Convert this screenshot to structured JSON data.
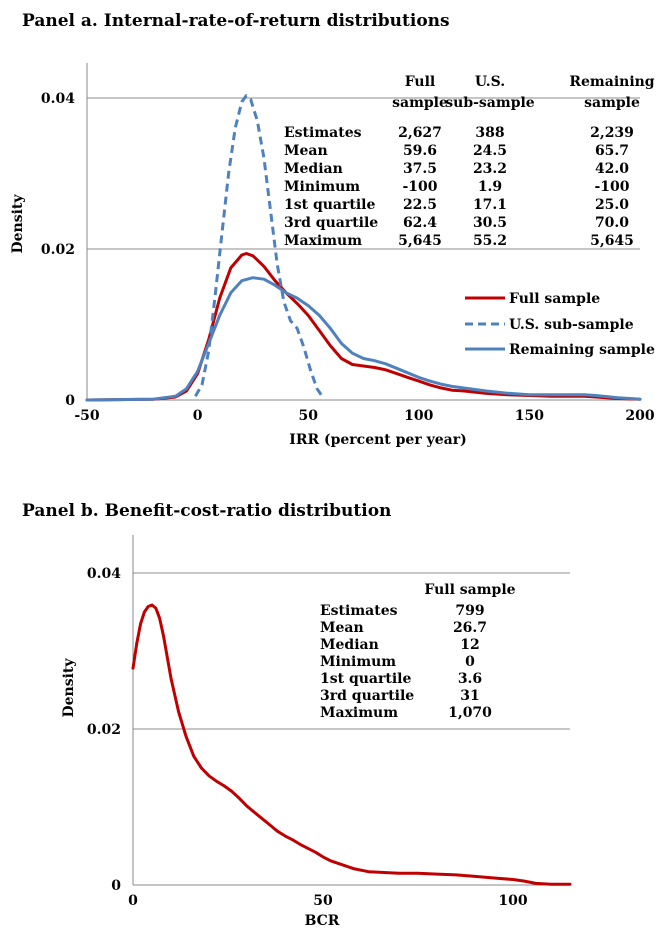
{
  "chart_data": [
    {
      "type": "line",
      "title": "Panel a. Internal-rate-of-return distributions",
      "xlabel": "IRR (percent per year)",
      "ylabel": "Density",
      "xlim": [
        -50,
        200
      ],
      "ylim": [
        0,
        0.04
      ],
      "x_ticks": [
        "-50",
        "0",
        "50",
        "100",
        "150",
        "200"
      ],
      "y_ticks": [
        "0",
        "0.02",
        "0.04"
      ],
      "grid": "horizontal",
      "legend_position": "right",
      "series": [
        {
          "name": "Full sample",
          "color": "#c00000",
          "style": "solid",
          "points": [
            [
              -50,
              0
            ],
            [
              -20,
              0.0001
            ],
            [
              -10,
              0.0004
            ],
            [
              -5,
              0.0012
            ],
            [
              0,
              0.0035
            ],
            [
              5,
              0.008
            ],
            [
              10,
              0.0135
            ],
            [
              15,
              0.0175
            ],
            [
              20,
              0.0192
            ],
            [
              22,
              0.0194
            ],
            [
              25,
              0.0191
            ],
            [
              30,
              0.0177
            ],
            [
              35,
              0.0158
            ],
            [
              40,
              0.0142
            ],
            [
              45,
              0.0128
            ],
            [
              50,
              0.0112
            ],
            [
              55,
              0.0092
            ],
            [
              60,
              0.0072
            ],
            [
              65,
              0.0055
            ],
            [
              70,
              0.0047
            ],
            [
              75,
              0.0045
            ],
            [
              80,
              0.0043
            ],
            [
              85,
              0.004
            ],
            [
              90,
              0.0035
            ],
            [
              95,
              0.003
            ],
            [
              100,
              0.0025
            ],
            [
              105,
              0.002
            ],
            [
              110,
              0.0016
            ],
            [
              115,
              0.0013
            ],
            [
              120,
              0.0012
            ],
            [
              130,
              0.0009
            ],
            [
              140,
              0.0007
            ],
            [
              150,
              0.0006
            ],
            [
              160,
              0.0005
            ],
            [
              170,
              0.0005
            ],
            [
              175,
              0.0005
            ],
            [
              180,
              0.0004
            ],
            [
              190,
              0.0002
            ],
            [
              200,
              0.0001
            ]
          ]
        },
        {
          "name": "U.S. sub-sample",
          "color": "#4f81bd",
          "style": "dashed",
          "points": [
            [
              -1,
              0.0005
            ],
            [
              2,
              0.002
            ],
            [
              5,
              0.0065
            ],
            [
              8,
              0.014
            ],
            [
              11,
              0.022
            ],
            [
              14,
              0.03
            ],
            [
              17,
              0.036
            ],
            [
              20,
              0.0395
            ],
            [
              22,
              0.0403
            ],
            [
              24,
              0.0398
            ],
            [
              27,
              0.037
            ],
            [
              30,
              0.032
            ],
            [
              33,
              0.025
            ],
            [
              36,
              0.018
            ],
            [
              39,
              0.013
            ],
            [
              42,
              0.0105
            ],
            [
              45,
              0.0095
            ],
            [
              48,
              0.007
            ],
            [
              51,
              0.004
            ],
            [
              54,
              0.0015
            ],
            [
              57,
              0.0002
            ]
          ]
        },
        {
          "name": "Remaining sample",
          "color": "#4f81bd",
          "style": "solid",
          "points": [
            [
              -50,
              0
            ],
            [
              -20,
              0.0001
            ],
            [
              -10,
              0.0005
            ],
            [
              -5,
              0.0015
            ],
            [
              0,
              0.0038
            ],
            [
              5,
              0.0075
            ],
            [
              10,
              0.0112
            ],
            [
              15,
              0.0142
            ],
            [
              20,
              0.0158
            ],
            [
              25,
              0.0162
            ],
            [
              30,
              0.016
            ],
            [
              35,
              0.0152
            ],
            [
              40,
              0.0142
            ],
            [
              45,
              0.0135
            ],
            [
              50,
              0.0125
            ],
            [
              55,
              0.0112
            ],
            [
              60,
              0.0095
            ],
            [
              65,
              0.0075
            ],
            [
              70,
              0.0062
            ],
            [
              75,
              0.0055
            ],
            [
              80,
              0.0052
            ],
            [
              85,
              0.0048
            ],
            [
              90,
              0.0042
            ],
            [
              95,
              0.0036
            ],
            [
              100,
              0.003
            ],
            [
              105,
              0.0025
            ],
            [
              110,
              0.0021
            ],
            [
              115,
              0.0018
            ],
            [
              120,
              0.0016
            ],
            [
              130,
              0.0012
            ],
            [
              140,
              0.0009
            ],
            [
              150,
              0.0007
            ],
            [
              160,
              0.0007
            ],
            [
              170,
              0.0007
            ],
            [
              175,
              0.0007
            ],
            [
              180,
              0.0006
            ],
            [
              190,
              0.0003
            ],
            [
              200,
              0.0001
            ]
          ]
        }
      ],
      "stats_table": {
        "columns": [
          [
            "Full",
            "sample"
          ],
          [
            "U.S.",
            "sub-sample"
          ],
          [
            "Remaining",
            "sample"
          ]
        ],
        "rows": [
          {
            "label": "Estimates",
            "values": [
              "2,627",
              "388",
              "2,239"
            ]
          },
          {
            "label": "Mean",
            "values": [
              "59.6",
              "24.5",
              "65.7"
            ]
          },
          {
            "label": "Median",
            "values": [
              "37.5",
              "23.2",
              "42.0"
            ]
          },
          {
            "label": "Minimum",
            "values": [
              "-100",
              "1.9",
              "-100"
            ]
          },
          {
            "label": "1st quartile",
            "values": [
              "22.5",
              "17.1",
              "25.0"
            ]
          },
          {
            "label": "3rd quartile",
            "values": [
              "62.4",
              "30.5",
              "70.0"
            ]
          },
          {
            "label": "Maximum",
            "values": [
              "5,645",
              "55.2",
              "5,645"
            ]
          }
        ]
      }
    },
    {
      "type": "line",
      "title": "Panel b. Benefit-cost-ratio distribution",
      "xlabel": "BCR",
      "ylabel": "Density",
      "xlim": [
        0,
        115
      ],
      "ylim": [
        0,
        0.04
      ],
      "x_ticks": [
        "0",
        "50",
        "100"
      ],
      "y_ticks": [
        "0",
        "0.02",
        "0.04"
      ],
      "grid": "horizontal",
      "series": [
        {
          "name": "",
          "color": "#c00000",
          "style": "solid",
          "points": [
            [
              0,
              0.0278
            ],
            [
              1,
              0.031
            ],
            [
              2,
              0.0335
            ],
            [
              3,
              0.035
            ],
            [
              4,
              0.0357
            ],
            [
              5,
              0.0359
            ],
            [
              6,
              0.0355
            ],
            [
              7,
              0.0342
            ],
            [
              8,
              0.032
            ],
            [
              10,
              0.0265
            ],
            [
              12,
              0.0222
            ],
            [
              14,
              0.019
            ],
            [
              16,
              0.0165
            ],
            [
              18,
              0.015
            ],
            [
              20,
              0.014
            ],
            [
              22,
              0.0133
            ],
            [
              24,
              0.0127
            ],
            [
              26,
              0.012
            ],
            [
              28,
              0.0111
            ],
            [
              30,
              0.0101
            ],
            [
              32,
              0.0093
            ],
            [
              34,
              0.0085
            ],
            [
              36,
              0.0077
            ],
            [
              38,
              0.0069
            ],
            [
              40,
              0.0063
            ],
            [
              42,
              0.0058
            ],
            [
              44,
              0.0052
            ],
            [
              46,
              0.0047
            ],
            [
              48,
              0.0042
            ],
            [
              50,
              0.0036
            ],
            [
              52,
              0.0031
            ],
            [
              55,
              0.0026
            ],
            [
              58,
              0.0021
            ],
            [
              62,
              0.0017
            ],
            [
              66,
              0.0016
            ],
            [
              70,
              0.0015
            ],
            [
              75,
              0.0015
            ],
            [
              80,
              0.0014
            ],
            [
              85,
              0.0013
            ],
            [
              90,
              0.0011
            ],
            [
              95,
              0.0009
            ],
            [
              100,
              0.0007
            ],
            [
              103,
              0.0005
            ],
            [
              106,
              0.0002
            ],
            [
              110,
              0.0001
            ],
            [
              115,
              0.0001
            ]
          ]
        }
      ],
      "stats_table": {
        "columns": [
          [
            "Full sample"
          ]
        ],
        "rows": [
          {
            "label": "Estimates",
            "values": [
              "799"
            ]
          },
          {
            "label": "Mean",
            "values": [
              "26.7"
            ]
          },
          {
            "label": "Median",
            "values": [
              "12"
            ]
          },
          {
            "label": "Minimum",
            "values": [
              "0"
            ]
          },
          {
            "label": "1st quartile",
            "values": [
              "3.6"
            ]
          },
          {
            "label": "3rd quartile",
            "values": [
              "31"
            ]
          },
          {
            "label": "Maximum",
            "values": [
              "1,070"
            ]
          }
        ]
      }
    }
  ]
}
